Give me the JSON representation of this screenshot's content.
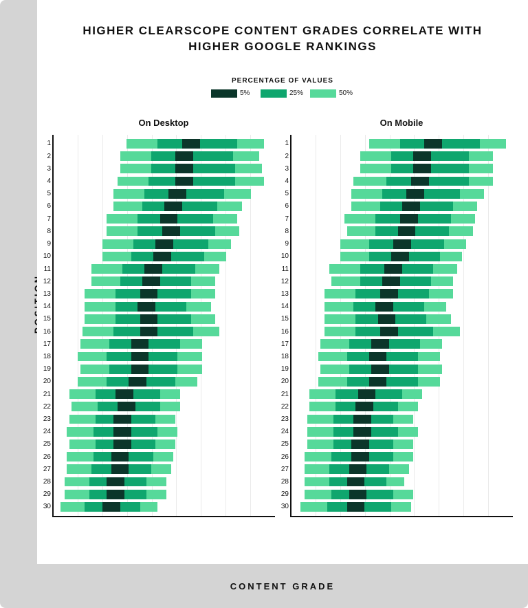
{
  "title": "HIGHER CLEARSCOPE CONTENT GRADES CORRELATE WITH HIGHER GOOGLE RANKINGS",
  "y_axis_label": "POSITION",
  "x_axis_label": "CONTENT GRADE",
  "legend": {
    "title": "PERCENTAGE OF VALUES",
    "items": [
      {
        "label": "5%",
        "color": "#0b362a"
      },
      {
        "label": "25%",
        "color": "#0fa66e"
      },
      {
        "label": "50%",
        "color": "#56d99a"
      }
    ]
  },
  "colors": {
    "p5": "#0b362a",
    "p25": "#0fa66e",
    "p50": "#56d99a",
    "grid": "#eaeaea",
    "axis": "#111111",
    "bg_outer": "#d4d4d4",
    "bg_inner": "#ffffff"
  },
  "chart": {
    "type": "horizontal-boxplot-bands",
    "xlim": [
      0,
      100
    ],
    "n_gridlines": 9,
    "row_height_pct": 76,
    "positions": [
      1,
      2,
      3,
      4,
      5,
      6,
      7,
      8,
      9,
      10,
      11,
      12,
      13,
      14,
      15,
      16,
      17,
      18,
      19,
      20,
      21,
      22,
      23,
      24,
      25,
      26,
      27,
      28,
      29,
      30
    ]
  },
  "panels": [
    {
      "title": "On Desktop",
      "rows": [
        {
          "p50": [
            33,
            95
          ],
          "p25": [
            47,
            83
          ],
          "p5": [
            58,
            66
          ]
        },
        {
          "p50": [
            30,
            93
          ],
          "p25": [
            44,
            81
          ],
          "p5": [
            55,
            63
          ]
        },
        {
          "p50": [
            30,
            94
          ],
          "p25": [
            44,
            82
          ],
          "p5": [
            55,
            63
          ]
        },
        {
          "p50": [
            29,
            95
          ],
          "p25": [
            43,
            82
          ],
          "p5": [
            55,
            63
          ]
        },
        {
          "p50": [
            27,
            89
          ],
          "p25": [
            41,
            77
          ],
          "p5": [
            52,
            60
          ]
        },
        {
          "p50": [
            27,
            85
          ],
          "p25": [
            40,
            74
          ],
          "p5": [
            50,
            58
          ]
        },
        {
          "p50": [
            24,
            83
          ],
          "p25": [
            38,
            72
          ],
          "p5": [
            48,
            56
          ]
        },
        {
          "p50": [
            24,
            84
          ],
          "p25": [
            38,
            73
          ],
          "p5": [
            49,
            57
          ]
        },
        {
          "p50": [
            22,
            80
          ],
          "p25": [
            36,
            70
          ],
          "p5": [
            46,
            54
          ]
        },
        {
          "p50": [
            22,
            78
          ],
          "p25": [
            35,
            68
          ],
          "p5": [
            45,
            53
          ]
        },
        {
          "p50": [
            17,
            75
          ],
          "p25": [
            31,
            64
          ],
          "p5": [
            41,
            49
          ]
        },
        {
          "p50": [
            17,
            73
          ],
          "p25": [
            30,
            62
          ],
          "p5": [
            40,
            48
          ]
        },
        {
          "p50": [
            14,
            73
          ],
          "p25": [
            28,
            62
          ],
          "p5": [
            39,
            47
          ]
        },
        {
          "p50": [
            14,
            71
          ],
          "p25": [
            28,
            60
          ],
          "p5": [
            38,
            46
          ]
        },
        {
          "p50": [
            14,
            73
          ],
          "p25": [
            28,
            62
          ],
          "p5": [
            39,
            47
          ]
        },
        {
          "p50": [
            13,
            75
          ],
          "p25": [
            27,
            63
          ],
          "p5": [
            39,
            47
          ]
        },
        {
          "p50": [
            12,
            67
          ],
          "p25": [
            25,
            57
          ],
          "p5": [
            35,
            43
          ]
        },
        {
          "p50": [
            11,
            67
          ],
          "p25": [
            24,
            56
          ],
          "p5": [
            35,
            43
          ]
        },
        {
          "p50": [
            12,
            67
          ],
          "p25": [
            25,
            56
          ],
          "p5": [
            35,
            43
          ]
        },
        {
          "p50": [
            11,
            65
          ],
          "p25": [
            24,
            55
          ],
          "p5": [
            34,
            42
          ]
        },
        {
          "p50": [
            7,
            57
          ],
          "p25": [
            19,
            48
          ],
          "p5": [
            28,
            36
          ]
        },
        {
          "p50": [
            8,
            57
          ],
          "p25": [
            20,
            48
          ],
          "p5": [
            29,
            37
          ]
        },
        {
          "p50": [
            7,
            55
          ],
          "p25": [
            19,
            46
          ],
          "p5": [
            27,
            35
          ]
        },
        {
          "p50": [
            6,
            56
          ],
          "p25": [
            18,
            47
          ],
          "p5": [
            27,
            35
          ]
        },
        {
          "p50": [
            7,
            55
          ],
          "p25": [
            19,
            46
          ],
          "p5": [
            27,
            35
          ]
        },
        {
          "p50": [
            6,
            54
          ],
          "p25": [
            18,
            45
          ],
          "p5": [
            26,
            34
          ]
        },
        {
          "p50": [
            6,
            53
          ],
          "p25": [
            17,
            44
          ],
          "p5": [
            26,
            34
          ]
        },
        {
          "p50": [
            5,
            51
          ],
          "p25": [
            16,
            42
          ],
          "p5": [
            24,
            32
          ]
        },
        {
          "p50": [
            5,
            51
          ],
          "p25": [
            16,
            42
          ],
          "p5": [
            24,
            32
          ]
        },
        {
          "p50": [
            3,
            47
          ],
          "p25": [
            14,
            39
          ],
          "p5": [
            22,
            30
          ]
        }
      ]
    },
    {
      "title": "On Mobile",
      "rows": [
        {
          "p50": [
            35,
            97
          ],
          "p25": [
            49,
            85
          ],
          "p5": [
            60,
            68
          ]
        },
        {
          "p50": [
            31,
            91
          ],
          "p25": [
            45,
            80
          ],
          "p5": [
            55,
            63
          ]
        },
        {
          "p50": [
            31,
            91
          ],
          "p25": [
            45,
            80
          ],
          "p5": [
            55,
            63
          ]
        },
        {
          "p50": [
            28,
            91
          ],
          "p25": [
            43,
            80
          ],
          "p5": [
            54,
            62
          ]
        },
        {
          "p50": [
            27,
            87
          ],
          "p25": [
            41,
            76
          ],
          "p5": [
            52,
            60
          ]
        },
        {
          "p50": [
            27,
            84
          ],
          "p25": [
            40,
            73
          ],
          "p5": [
            50,
            58
          ]
        },
        {
          "p50": [
            24,
            83
          ],
          "p25": [
            38,
            72
          ],
          "p5": [
            49,
            57
          ]
        },
        {
          "p50": [
            25,
            82
          ],
          "p25": [
            38,
            71
          ],
          "p5": [
            48,
            56
          ]
        },
        {
          "p50": [
            22,
            79
          ],
          "p25": [
            35,
            69
          ],
          "p5": [
            46,
            54
          ]
        },
        {
          "p50": [
            22,
            77
          ],
          "p25": [
            35,
            67
          ],
          "p5": [
            45,
            53
          ]
        },
        {
          "p50": [
            17,
            75
          ],
          "p25": [
            31,
            64
          ],
          "p5": [
            42,
            50
          ]
        },
        {
          "p50": [
            18,
            73
          ],
          "p25": [
            31,
            63
          ],
          "p5": [
            41,
            49
          ]
        },
        {
          "p50": [
            15,
            73
          ],
          "p25": [
            29,
            62
          ],
          "p5": [
            40,
            48
          ]
        },
        {
          "p50": [
            15,
            70
          ],
          "p25": [
            28,
            60
          ],
          "p5": [
            38,
            46
          ]
        },
        {
          "p50": [
            15,
            72
          ],
          "p25": [
            29,
            61
          ],
          "p5": [
            39,
            47
          ]
        },
        {
          "p50": [
            15,
            76
          ],
          "p25": [
            29,
            64
          ],
          "p5": [
            40,
            48
          ]
        },
        {
          "p50": [
            13,
            68
          ],
          "p25": [
            26,
            58
          ],
          "p5": [
            36,
            44
          ]
        },
        {
          "p50": [
            12,
            67
          ],
          "p25": [
            25,
            57
          ],
          "p5": [
            35,
            43
          ]
        },
        {
          "p50": [
            13,
            68
          ],
          "p25": [
            26,
            57
          ],
          "p5": [
            36,
            44
          ]
        },
        {
          "p50": [
            12,
            67
          ],
          "p25": [
            25,
            57
          ],
          "p5": [
            35,
            43
          ]
        },
        {
          "p50": [
            8,
            59
          ],
          "p25": [
            20,
            50
          ],
          "p5": [
            30,
            38
          ]
        },
        {
          "p50": [
            8,
            57
          ],
          "p25": [
            20,
            48
          ],
          "p5": [
            29,
            37
          ]
        },
        {
          "p50": [
            7,
            55
          ],
          "p25": [
            19,
            46
          ],
          "p5": [
            28,
            36
          ]
        },
        {
          "p50": [
            7,
            57
          ],
          "p25": [
            19,
            48
          ],
          "p5": [
            28,
            36
          ]
        },
        {
          "p50": [
            7,
            55
          ],
          "p25": [
            19,
            46
          ],
          "p5": [
            27,
            35
          ]
        },
        {
          "p50": [
            6,
            55
          ],
          "p25": [
            18,
            46
          ],
          "p5": [
            27,
            35
          ]
        },
        {
          "p50": [
            6,
            53
          ],
          "p25": [
            17,
            44
          ],
          "p5": [
            26,
            34
          ]
        },
        {
          "p50": [
            6,
            51
          ],
          "p25": [
            17,
            43
          ],
          "p5": [
            25,
            33
          ]
        },
        {
          "p50": [
            6,
            55
          ],
          "p25": [
            18,
            46
          ],
          "p5": [
            26,
            34
          ]
        },
        {
          "p50": [
            4,
            54
          ],
          "p25": [
            16,
            45
          ],
          "p5": [
            25,
            33
          ]
        }
      ]
    }
  ]
}
